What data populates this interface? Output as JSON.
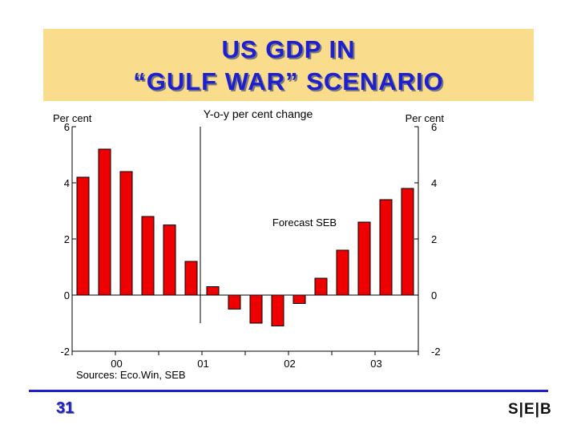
{
  "slide": {
    "title_line_1": "US GDP IN",
    "title_line_2": "“GULF WAR” SCENARIO",
    "page_number": "31",
    "logo_text": "S|E|B"
  },
  "colors": {
    "bar_fill": "#ee0000",
    "title_text": "#1d1fd0",
    "title_band": "#f9dc8c",
    "axis": "#000000"
  },
  "chart_data": {
    "type": "bar",
    "subtitle": "Y-o-y per cent change",
    "left_unit": "Per cent",
    "right_unit": "Per cent",
    "source": "Sources: Eco.Win, SEB",
    "forecast_label": "Forecast SEB",
    "ylim": [
      -2,
      6
    ],
    "yticks": [
      -2,
      0,
      2,
      4,
      6
    ],
    "x_year_labels": [
      "00",
      "01",
      "02",
      "03"
    ],
    "values": [
      4.2,
      5.2,
      4.4,
      2.8,
      2.5,
      1.2,
      0.3,
      -0.5,
      -1.0,
      -1.1,
      -0.3,
      0.6,
      1.6,
      2.6,
      3.4,
      3.8
    ],
    "quarters_per_year": 4,
    "forecast_start_index": 6
  }
}
